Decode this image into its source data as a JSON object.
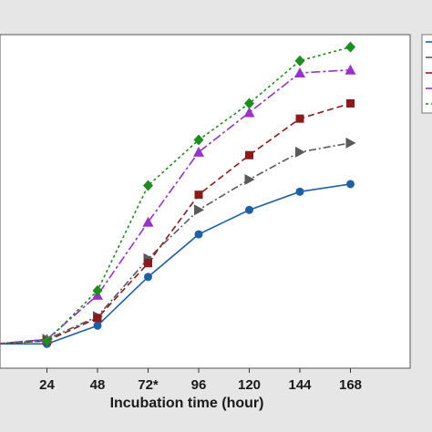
{
  "chart_data": {
    "type": "line",
    "xlabel": "Incubation time (hour)",
    "ylabel": "",
    "x": [
      0,
      24,
      48,
      72,
      96,
      120,
      144,
      168
    ],
    "x_tick_labels": [
      "",
      "24",
      "48",
      "72*",
      "96",
      "120",
      "144",
      "168"
    ],
    "ylim": [
      0,
      1.0
    ],
    "grid": false,
    "legend_placement": "right",
    "series": [
      {
        "values": [
          0.02,
          0.02,
          0.08,
          0.24,
          0.38,
          0.46,
          0.52,
          0.545
        ],
        "color": "#1f5fa5",
        "marker": "circle",
        "dash": "solid"
      },
      {
        "values": [
          0.02,
          0.035,
          0.11,
          0.3,
          0.46,
          0.56,
          0.65,
          0.68
        ],
        "color": "#5a5a5a",
        "marker": "triangle-right",
        "dash": "dashdot"
      },
      {
        "values": [
          0.02,
          0.03,
          0.105,
          0.285,
          0.51,
          0.64,
          0.76,
          0.81
        ],
        "color": "#8b1a1a",
        "marker": "square",
        "dash": "dash"
      },
      {
        "values": [
          0.02,
          0.035,
          0.18,
          0.42,
          0.65,
          0.78,
          0.91,
          0.92
        ],
        "color": "#9932cc",
        "marker": "triangle-up",
        "dash": "dashdot-long"
      },
      {
        "values": [
          0.02,
          0.03,
          0.195,
          0.54,
          0.69,
          0.81,
          0.95,
          0.995
        ],
        "color": "#1e8c1e",
        "marker": "diamond",
        "dash": "dot"
      }
    ]
  }
}
